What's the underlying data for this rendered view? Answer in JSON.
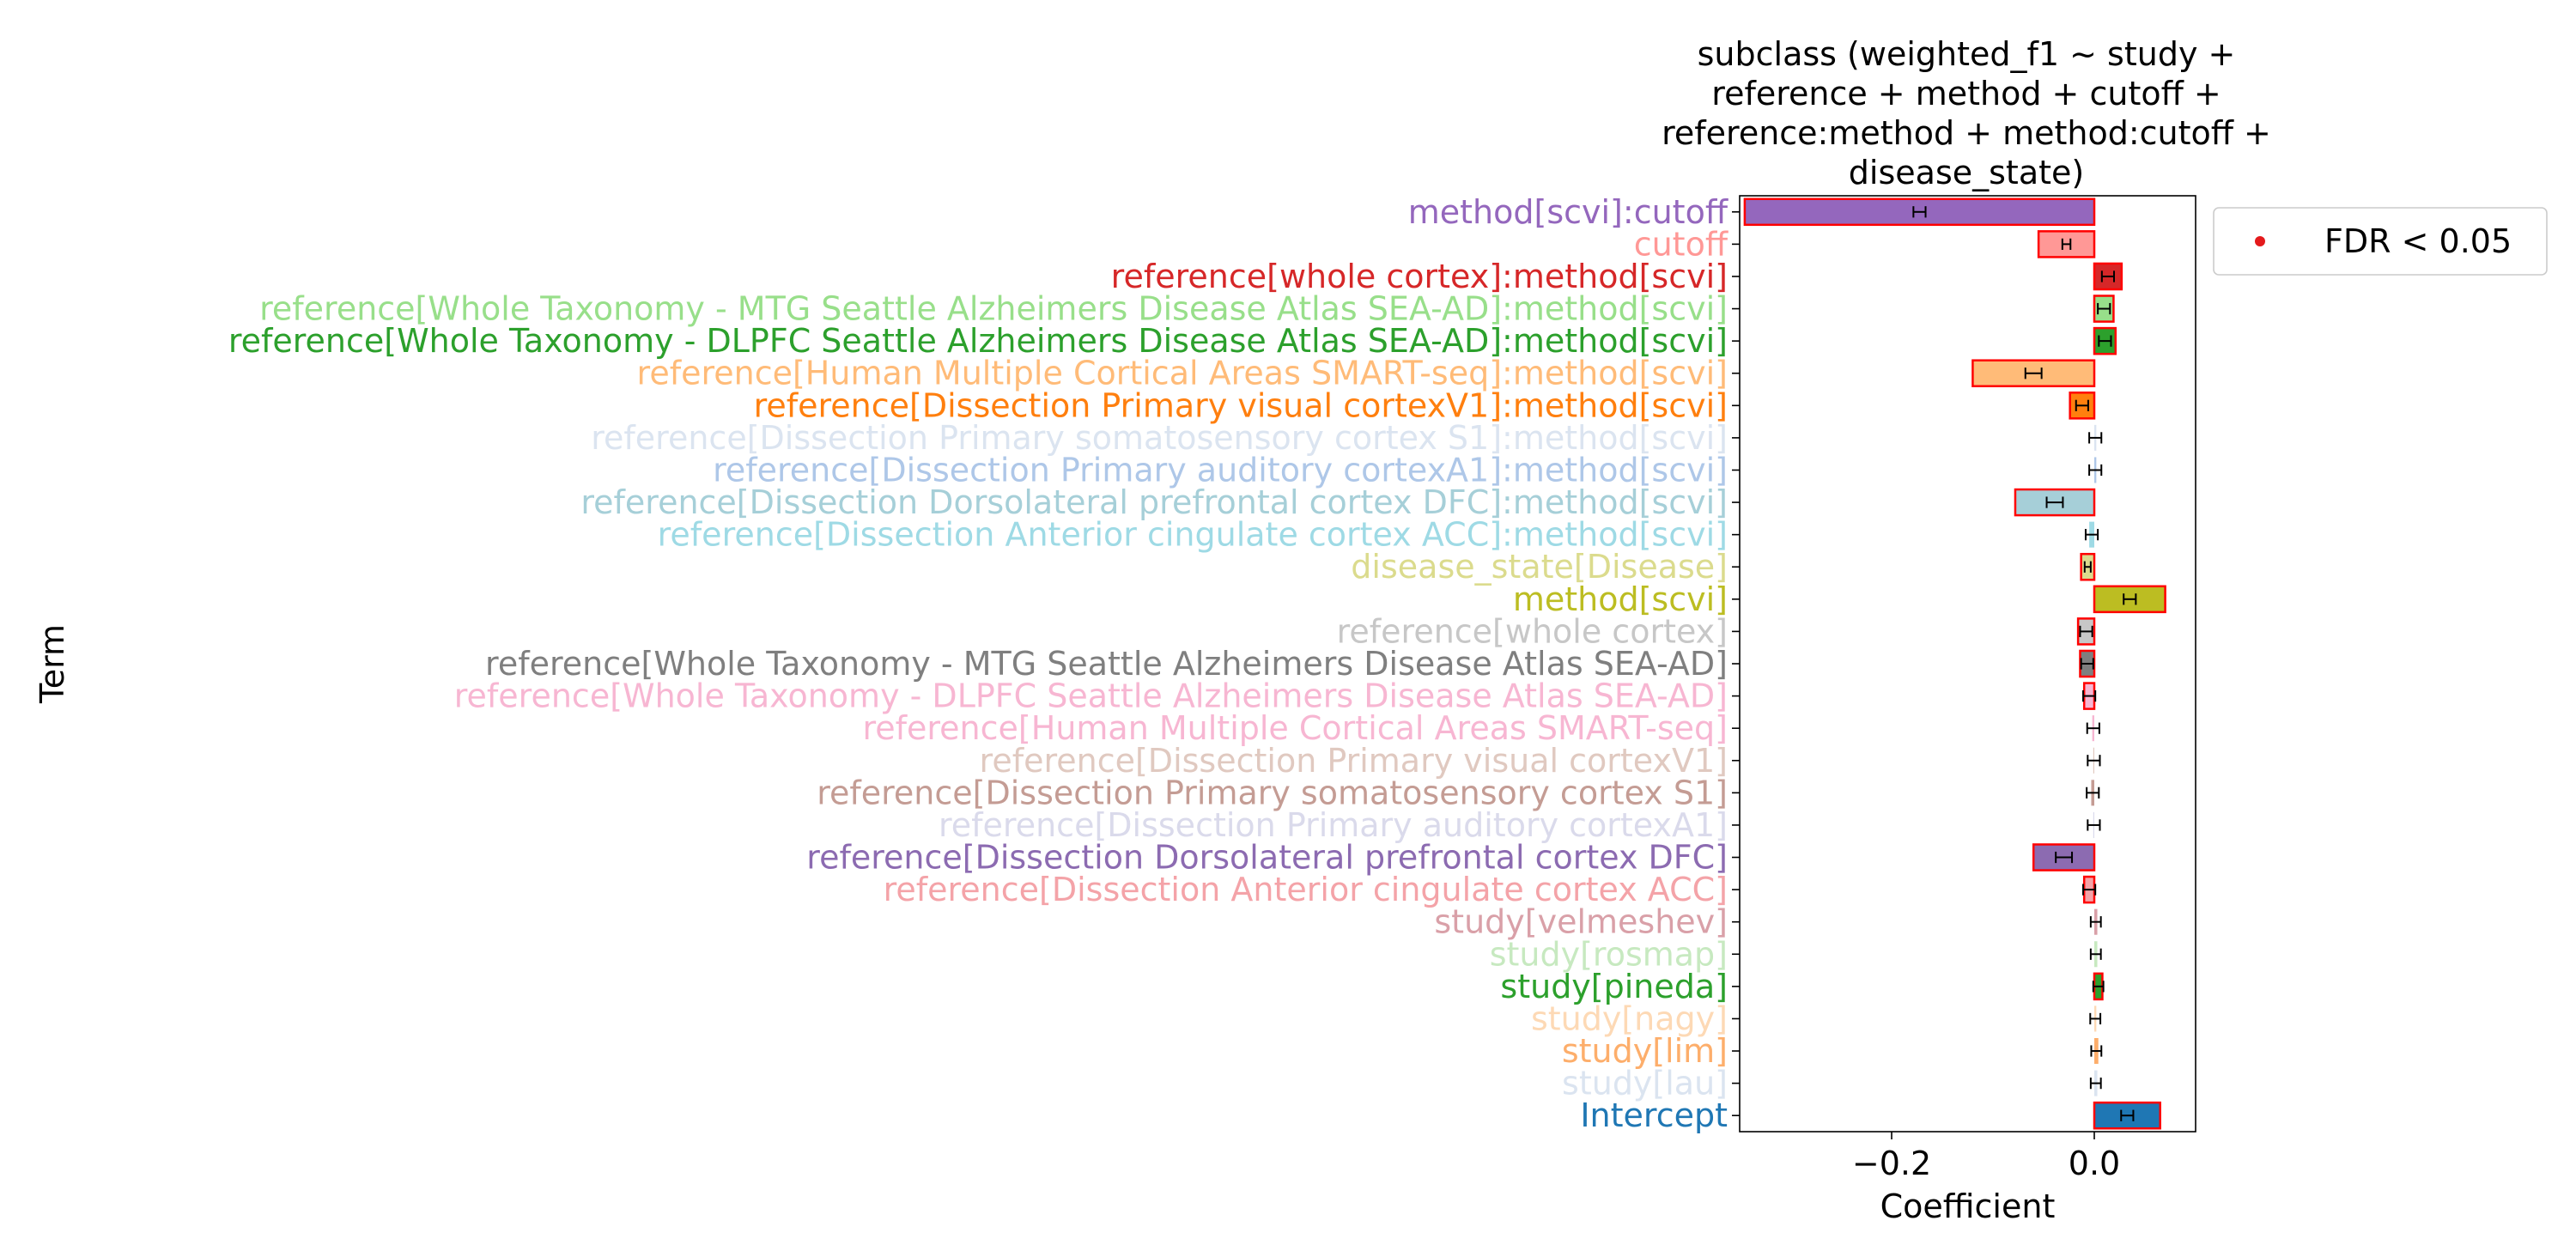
{
  "chart_data": {
    "type": "bar",
    "orientation": "horizontal",
    "title_lines": [
      "subclass (weighted_f1 ~ study +",
      "reference + method + cutoff +",
      "reference:method + method:cutoff +",
      "disease_state)"
    ],
    "xlabel": "Coefficient",
    "ylabel": "Term",
    "xlim": [
      -0.35,
      0.1
    ],
    "xticks": [
      {
        "value": -0.2,
        "label": "−0.2"
      },
      {
        "value": 0.0,
        "label": "0.0"
      }
    ],
    "legend": {
      "placement": "outside-top-right",
      "marker_color": "#e41a1c",
      "label": "FDR < 0.05"
    },
    "significant_edge_color": "#ff0000",
    "bars": [
      {
        "term": "method[scvi]:cutoff",
        "value": -0.345,
        "err": 0.006,
        "color": "#9467bd",
        "fdr_sig": true
      },
      {
        "term": "cutoff",
        "value": -0.055,
        "err": 0.004,
        "color": "#ff9896",
        "fdr_sig": true
      },
      {
        "term": "reference[whole cortex]:method[scvi]",
        "value": 0.027,
        "err": 0.006,
        "color": "#d62728",
        "fdr_sig": true
      },
      {
        "term": "reference[Whole Taxonomy - MTG Seattle Alzheimers Disease Atlas SEA-AD]:method[scvi]",
        "value": 0.019,
        "err": 0.006,
        "color": "#98df8a",
        "fdr_sig": true
      },
      {
        "term": "reference[Whole Taxonomy - DLPFC Seattle Alzheimers Disease Atlas SEA-AD]:method[scvi]",
        "value": 0.021,
        "err": 0.006,
        "color": "#2ca02c",
        "fdr_sig": true
      },
      {
        "term": "reference[Human Multiple Cortical Areas SMART-seq]:method[scvi]",
        "value": -0.12,
        "err": 0.008,
        "color": "#ffbb78",
        "fdr_sig": true
      },
      {
        "term": "reference[Dissection Primary visual cortexV1]:method[scvi]",
        "value": -0.024,
        "err": 0.006,
        "color": "#ff7f0e",
        "fdr_sig": true
      },
      {
        "term": "reference[Dissection Primary somatosensory cortex S1]:method[scvi]",
        "value": 0.002,
        "err": 0.006,
        "color": "#dbe4f0",
        "fdr_sig": false
      },
      {
        "term": "reference[Dissection Primary auditory cortexA1]:method[scvi]",
        "value": 0.002,
        "err": 0.006,
        "color": "#aec7e8",
        "fdr_sig": false
      },
      {
        "term": "reference[Dissection Dorsolateral prefrontal cortex DFC]:method[scvi]",
        "value": -0.078,
        "err": 0.008,
        "color": "#a6cfd8",
        "fdr_sig": true
      },
      {
        "term": "reference[Dissection Anterior cingulate cortex ACC]:method[scvi]",
        "value": -0.005,
        "err": 0.006,
        "color": "#9edae5",
        "fdr_sig": false
      },
      {
        "term": "disease_state[Disease]",
        "value": -0.013,
        "err": 0.003,
        "color": "#dbdb8d",
        "fdr_sig": true
      },
      {
        "term": "method[scvi]",
        "value": 0.07,
        "err": 0.006,
        "color": "#bcbd22",
        "fdr_sig": true
      },
      {
        "term": "reference[whole cortex]",
        "value": -0.016,
        "err": 0.006,
        "color": "#c7c7c7",
        "fdr_sig": true
      },
      {
        "term": "reference[Whole Taxonomy - MTG Seattle Alzheimers Disease Atlas SEA-AD]",
        "value": -0.014,
        "err": 0.006,
        "color": "#7f7f7f",
        "fdr_sig": true
      },
      {
        "term": "reference[Whole Taxonomy - DLPFC Seattle Alzheimers Disease Atlas SEA-AD]",
        "value": -0.01,
        "err": 0.006,
        "color": "#f7b6d2",
        "fdr_sig": true
      },
      {
        "term": "reference[Human Multiple Cortical Areas SMART-seq]",
        "value": -0.002,
        "err": 0.006,
        "color": "#f7b6d2",
        "fdr_sig": false
      },
      {
        "term": "reference[Dissection Primary visual cortexV1]",
        "value": -0.001,
        "err": 0.006,
        "color": "#e0c9c0",
        "fdr_sig": false
      },
      {
        "term": "reference[Dissection Primary somatosensory cortex S1]",
        "value": -0.003,
        "err": 0.006,
        "color": "#c49c94",
        "fdr_sig": false
      },
      {
        "term": "reference[Dissection Primary auditory cortexA1]",
        "value": -0.001,
        "err": 0.006,
        "color": "#dadaeb",
        "fdr_sig": false
      },
      {
        "term": "reference[Dissection Dorsolateral prefrontal cortex DFC]",
        "value": -0.06,
        "err": 0.008,
        "color": "#8c6bb1",
        "fdr_sig": true
      },
      {
        "term": "reference[Dissection Anterior cingulate cortex ACC]",
        "value": -0.01,
        "err": 0.006,
        "color": "#f4a3a8",
        "fdr_sig": true
      },
      {
        "term": "study[velmeshev]",
        "value": 0.003,
        "err": 0.005,
        "color": "#d9a0a8",
        "fdr_sig": false
      },
      {
        "term": "study[rosmap]",
        "value": 0.003,
        "err": 0.005,
        "color": "#c7e9c0",
        "fdr_sig": false
      },
      {
        "term": "study[pineda]",
        "value": 0.008,
        "err": 0.005,
        "color": "#2ca02c",
        "fdr_sig": true
      },
      {
        "term": "study[nagy]",
        "value": 0.002,
        "err": 0.005,
        "color": "#fdd9b5",
        "fdr_sig": false
      },
      {
        "term": "study[lim]",
        "value": 0.004,
        "err": 0.005,
        "color": "#fdae6b",
        "fdr_sig": false
      },
      {
        "term": "study[lau]",
        "value": 0.003,
        "err": 0.005,
        "color": "#dbe4f0",
        "fdr_sig": false
      },
      {
        "term": "Intercept",
        "value": 0.065,
        "err": 0.006,
        "color": "#1f77b4",
        "fdr_sig": true
      }
    ]
  }
}
